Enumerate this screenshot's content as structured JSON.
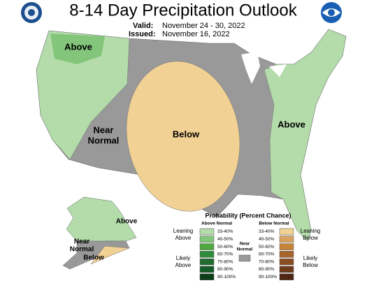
{
  "header": {
    "title": "8-14 Day Precipitation Outlook",
    "valid_label": "Valid:",
    "valid": "November 24 - 30, 2022",
    "issued_label": "Issued:",
    "issued": "November 16, 2022"
  },
  "map_labels": {
    "northwest": "Above",
    "west": {
      "lines": [
        "Near",
        "Normal"
      ]
    },
    "central": "Below",
    "east": "Above",
    "alaska_above": "Above",
    "alaska_near": {
      "lines": [
        "Near",
        "Normal"
      ]
    },
    "alaska_below": "Below"
  },
  "legend": {
    "title": "Probability (Percent Chance)",
    "above_header": "Above Normal",
    "below_header": "Below Normal",
    "near": {
      "lines": [
        "Near",
        "Normal"
      ],
      "color": "#999999"
    },
    "leaning_above": {
      "lines": [
        "Leaning",
        "Above"
      ]
    },
    "likely_above": {
      "lines": [
        "Likely",
        "Above"
      ]
    },
    "leaning_below": {
      "lines": [
        "Leaning",
        "Below"
      ]
    },
    "likely_below": {
      "lines": [
        "Likely",
        "Below"
      ]
    },
    "above": [
      {
        "label": "33-40%",
        "color": "#b3dcaa"
      },
      {
        "label": "40-50%",
        "color": "#83c57a"
      },
      {
        "label": "50-60%",
        "color": "#4fa83f"
      },
      {
        "label": "60-70%",
        "color": "#2f8a3a"
      },
      {
        "label": "70-80%",
        "color": "#1f6c2e"
      },
      {
        "label": "80-90%",
        "color": "#155a25"
      },
      {
        "label": "90-100%",
        "color": "#0b3d17"
      }
    ],
    "below": [
      {
        "label": "33-40%",
        "color": "#f2d194"
      },
      {
        "label": "40-50%",
        "color": "#d8a35e"
      },
      {
        "label": "50-60%",
        "color": "#c78436"
      },
      {
        "label": "60-70%",
        "color": "#a8642a"
      },
      {
        "label": "70-80%",
        "color": "#8a4d22"
      },
      {
        "label": "80-90%",
        "color": "#6e3a1a"
      },
      {
        "label": "90-100%",
        "color": "#4e2613"
      }
    ]
  }
}
